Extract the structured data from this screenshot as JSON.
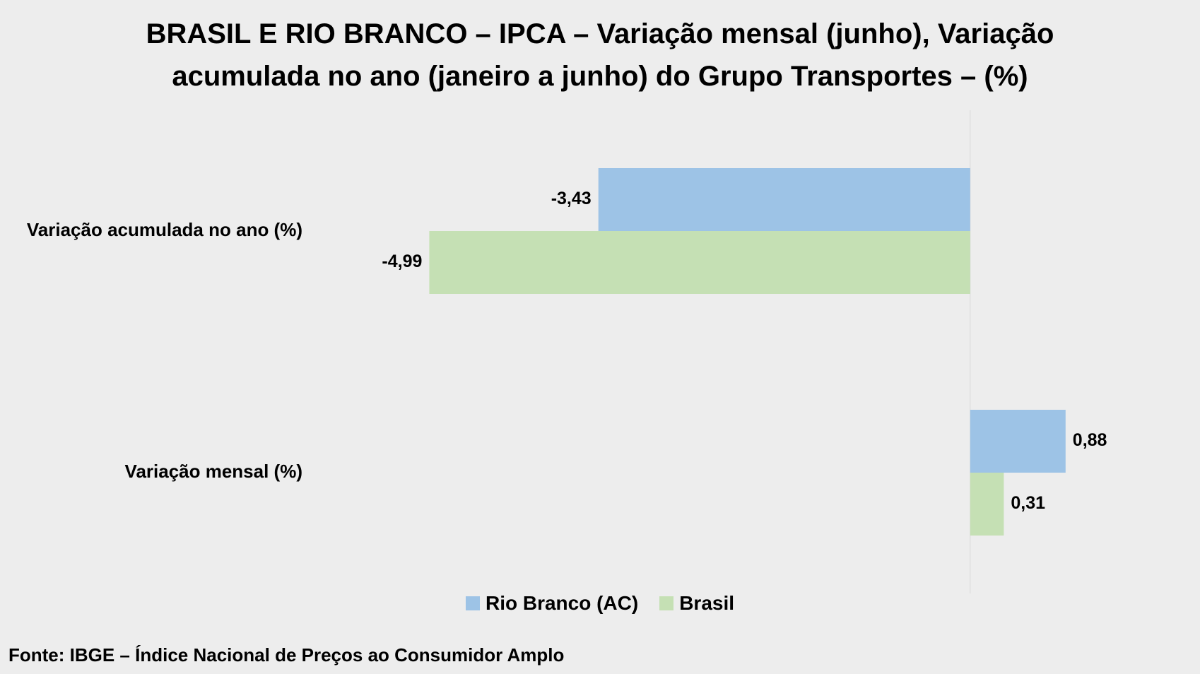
{
  "chart_data": {
    "type": "bar",
    "orientation": "horizontal",
    "title": [
      "BRASIL E RIO BRANCO – IPCA – Variação mensal (junho), Variação",
      "acumulada no ano (janeiro a junho) do Grupo Transportes – (%)"
    ],
    "categories": [
      "Variação acumulada no ano (%)",
      "Variação mensal (%)"
    ],
    "series": [
      {
        "name": "Rio Branco (AC)",
        "values": [
          -3.43,
          0.88
        ],
        "labels": [
          "-3,43",
          "0,88"
        ],
        "color": "#9dc3e6"
      },
      {
        "name": "Brasil",
        "values": [
          -4.99,
          0.31
        ],
        "labels": [
          "-4,99",
          "0,31"
        ],
        "color": "#c5e0b4"
      }
    ],
    "xlim": [
      -8.95,
      2.12
    ],
    "grid": false,
    "legend_position": "bottom",
    "source": "Fonte: IBGE – Índice Nacional de Preços ao Consumidor Amplo"
  },
  "colors": {
    "background": "#ededed",
    "axis": "#d9d9d9"
  }
}
